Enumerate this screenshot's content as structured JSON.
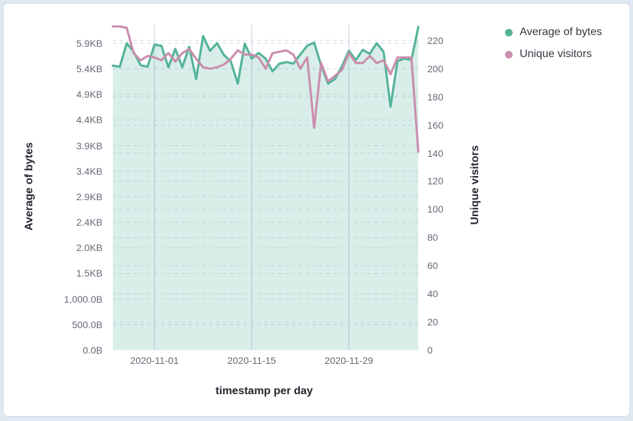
{
  "chart_data": {
    "type": "area",
    "title": "",
    "x": [
      "2020-10-26",
      "2020-10-27",
      "2020-10-28",
      "2020-10-29",
      "2020-10-30",
      "2020-10-31",
      "2020-11-01",
      "2020-11-02",
      "2020-11-03",
      "2020-11-04",
      "2020-11-05",
      "2020-11-06",
      "2020-11-07",
      "2020-11-08",
      "2020-11-09",
      "2020-11-10",
      "2020-11-11",
      "2020-11-12",
      "2020-11-13",
      "2020-11-14",
      "2020-11-15",
      "2020-11-16",
      "2020-11-17",
      "2020-11-18",
      "2020-11-19",
      "2020-11-20",
      "2020-11-21",
      "2020-11-22",
      "2020-11-23",
      "2020-11-24",
      "2020-11-25",
      "2020-11-26",
      "2020-11-27",
      "2020-11-28",
      "2020-11-29",
      "2020-11-30",
      "2020-12-01",
      "2020-12-02",
      "2020-12-03",
      "2020-12-04",
      "2020-12-05",
      "2020-12-06",
      "2020-12-07",
      "2020-12-08",
      "2020-12-09"
    ],
    "series": [
      {
        "name": "Average of bytes",
        "type": "area",
        "axis": "left",
        "color": "#54B399",
        "fill_opacity": 0.22,
        "values": [
          5560,
          5540,
          6000,
          5830,
          5570,
          5540,
          5970,
          5950,
          5530,
          5890,
          5530,
          5930,
          5300,
          6140,
          5850,
          6000,
          5770,
          5640,
          5210,
          5990,
          5700,
          5810,
          5700,
          5450,
          5600,
          5630,
          5600,
          5780,
          5950,
          6010,
          5570,
          5210,
          5300,
          5550,
          5850,
          5670,
          5870,
          5790,
          6000,
          5830,
          4760,
          5650,
          5700,
          5670,
          6320
        ]
      },
      {
        "name": "Unique visitors",
        "type": "line",
        "axis": "right",
        "color": "#CA8EAE",
        "values": [
          230,
          230,
          229,
          211,
          206,
          209,
          208,
          206,
          211,
          205,
          211,
          214,
          207,
          201,
          200,
          201,
          203,
          207,
          213,
          210,
          210,
          208,
          200,
          211,
          212,
          213,
          210,
          200,
          208,
          158,
          204,
          191,
          195,
          199,
          211,
          204,
          204,
          209,
          204,
          206,
          196,
          208,
          208,
          208,
          141
        ]
      }
    ],
    "left_axis": {
      "title": "Average of bytes",
      "range": [
        0,
        6360
      ],
      "ticks": [
        {
          "value": 0,
          "label": "0.0B"
        },
        {
          "value": 500,
          "label": "500.0B"
        },
        {
          "value": 1000,
          "label": "1,000.0B"
        },
        {
          "value": 1500,
          "label": "1.5KB"
        },
        {
          "value": 2000,
          "label": "2.0KB"
        },
        {
          "value": 2500,
          "label": "2.4KB"
        },
        {
          "value": 3000,
          "label": "2.9KB"
        },
        {
          "value": 3500,
          "label": "3.4KB"
        },
        {
          "value": 4000,
          "label": "3.9KB"
        },
        {
          "value": 4500,
          "label": "4.4KB"
        },
        {
          "value": 5000,
          "label": "4.9KB"
        },
        {
          "value": 5500,
          "label": "5.4KB"
        },
        {
          "value": 6000,
          "label": "5.9KB"
        }
      ]
    },
    "right_axis": {
      "title": "Unique visitors",
      "range": [
        0,
        231.2
      ],
      "ticks": [
        0,
        20,
        40,
        60,
        80,
        100,
        120,
        140,
        160,
        180,
        200,
        220
      ]
    },
    "x_axis": {
      "title": "timestamp per day",
      "tick_labels": [
        "2020-11-01",
        "2020-11-15",
        "2020-11-29"
      ]
    },
    "legend_position": "top-right",
    "grid": true,
    "colors": {
      "grid_dashed": "#d4dbe5",
      "grid_vertical": "#dde5ee",
      "tick_text": "#646a77",
      "title_text": "#23262e"
    }
  }
}
